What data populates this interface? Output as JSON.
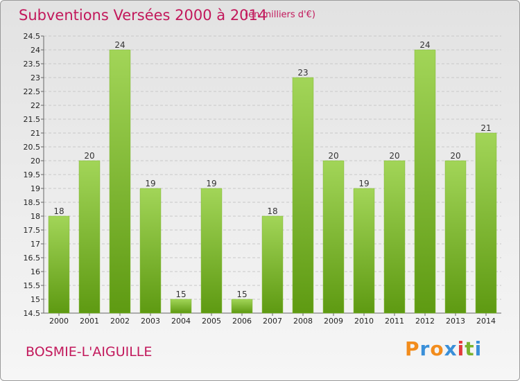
{
  "header": {
    "title": "Subventions Versées 2000 à 2014",
    "unit": "(en milliers d'€)"
  },
  "footer": {
    "commune": "BOSMIE-L'AIGUILLE",
    "logo_text": "Proxiti"
  },
  "colors": {
    "title": "#c2185b",
    "bar_top": "#a2d558",
    "bar_bottom": "#5e9a12"
  },
  "chart_data": {
    "type": "bar",
    "categories": [
      "2000",
      "2001",
      "2002",
      "2003",
      "2004",
      "2005",
      "2006",
      "2007",
      "2008",
      "2009",
      "2010",
      "2011",
      "2012",
      "2013",
      "2014"
    ],
    "values": [
      18,
      20,
      24,
      19,
      15,
      19,
      15,
      18,
      23,
      20,
      19,
      20,
      24,
      20,
      21
    ],
    "title": "Subventions Versées 2000 à 2014",
    "subtitle": "(en milliers d'€)",
    "xlabel": "",
    "ylabel": "",
    "ylim": [
      14.5,
      24.5
    ],
    "yticks": [
      "14.5",
      "15",
      "15.5",
      "16",
      "16.5",
      "17",
      "17.5",
      "18",
      "18.5",
      "19",
      "19.5",
      "20",
      "20.5",
      "21",
      "21.5",
      "22",
      "22.5",
      "23",
      "23.5",
      "24",
      "24.5"
    ],
    "grid": "horizontal dashed",
    "legend": "none"
  }
}
